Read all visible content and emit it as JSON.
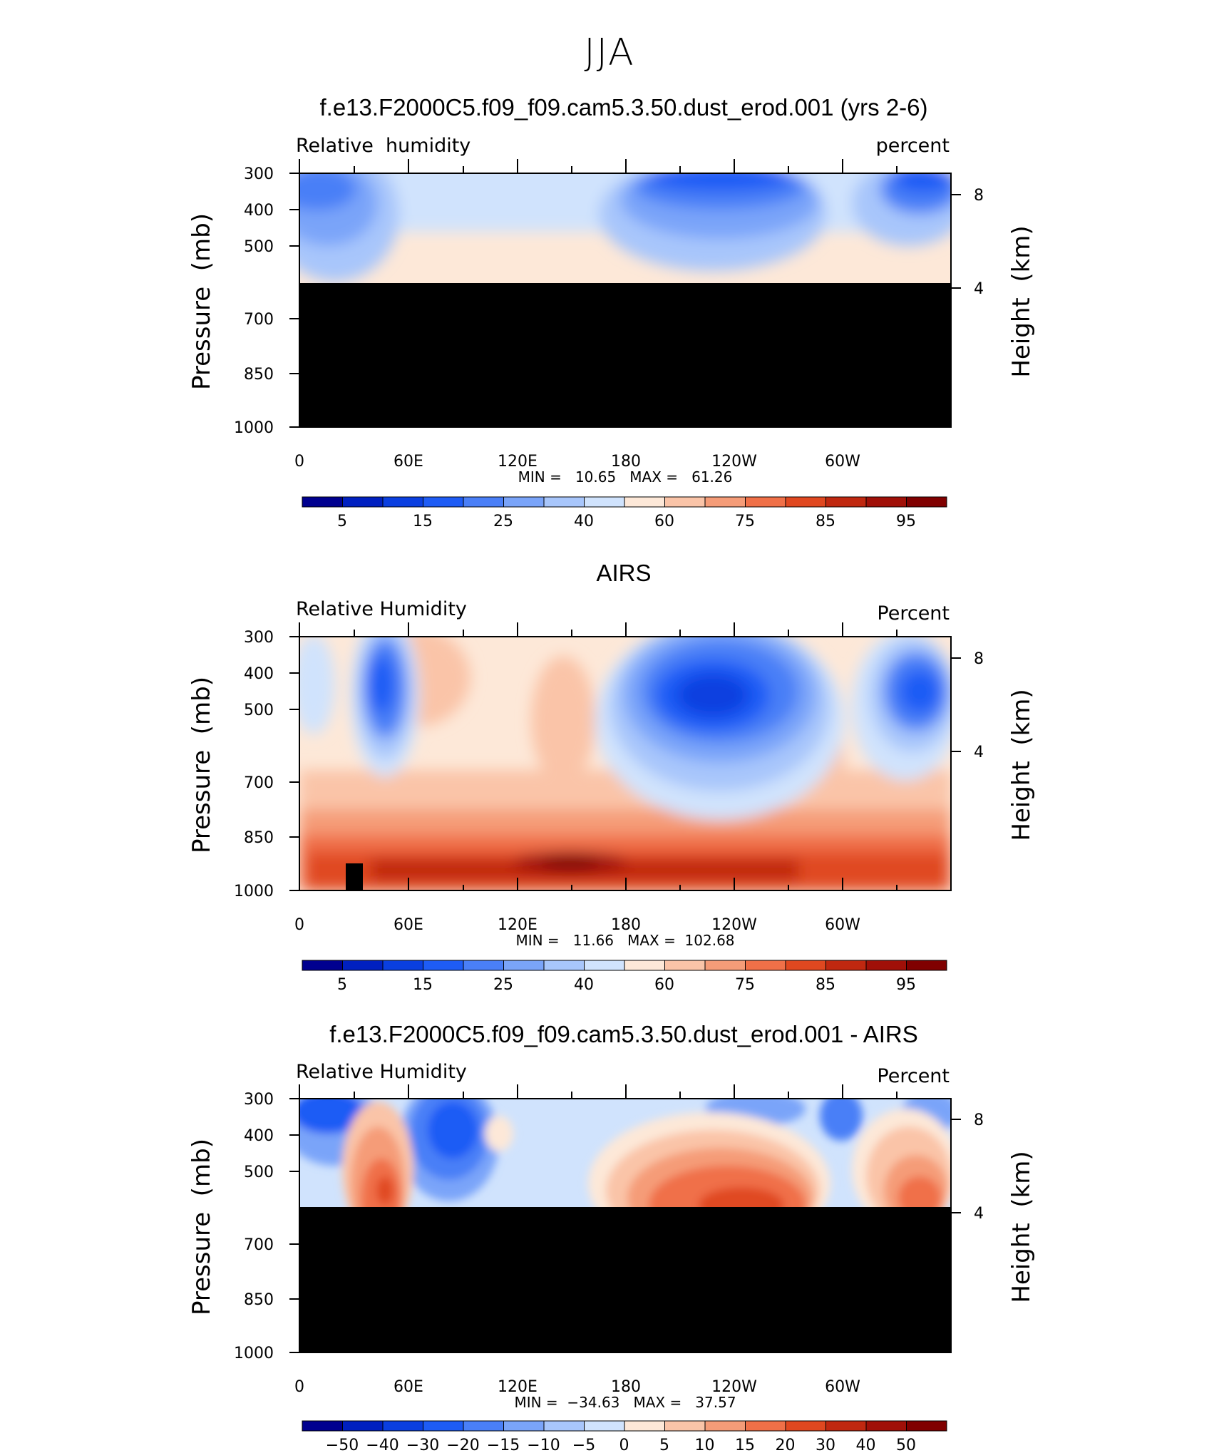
{
  "figure": {
    "title": "JJA"
  },
  "colors": {
    "axis": "#000000",
    "mask": "#000000"
  },
  "chart_data": [
    {
      "type": "heatmap",
      "title": "f.e13.F2000C5.f09_f09.cam5.3.50.dust_erod.001 (yrs 2-6)",
      "subtitle_left": "Relative  humidity",
      "subtitle_right": "percent",
      "ylabel": "Pressure  (mb)",
      "y2label": "Height  (km)",
      "x_ticks": [
        "0",
        "60E",
        "120E",
        "180",
        "120W",
        "60W"
      ],
      "y_ticks": [
        "300",
        "400",
        "500",
        "700",
        "850",
        "1000"
      ],
      "y2_ticks": [
        "8",
        "4"
      ],
      "stats": "MIN =   10.65   MAX =   61.26",
      "min": 10.65,
      "max": 61.26,
      "colorbar_labels": [
        "5",
        "15",
        "25",
        "40",
        "60",
        "75",
        "85",
        "95"
      ],
      "colorbar_colors": [
        "#00008f",
        "#0020c0",
        "#0a3fe0",
        "#1e5cf5",
        "#4a7ff7",
        "#7aa4f9",
        "#a8c6fb",
        "#d0e3fd",
        "#fde8d8",
        "#fac4a8",
        "#f59c78",
        "#f07048",
        "#e04820",
        "#c02810",
        "#a01008",
        "#800000"
      ]
    },
    {
      "type": "heatmap",
      "title": "AIRS",
      "subtitle_left": "Relative Humidity",
      "subtitle_right": "Percent",
      "ylabel": "Pressure  (mb)",
      "y2label": "Height  (km)",
      "x_ticks": [
        "0",
        "60E",
        "120E",
        "180",
        "120W",
        "60W"
      ],
      "y_ticks": [
        "300",
        "400",
        "500",
        "700",
        "850",
        "1000"
      ],
      "y2_ticks": [
        "8",
        "4"
      ],
      "stats": "MIN =   11.66   MAX =  102.68",
      "min": 11.66,
      "max": 102.68,
      "colorbar_labels": [
        "5",
        "15",
        "25",
        "40",
        "60",
        "75",
        "85",
        "95"
      ],
      "colorbar_colors": [
        "#00008f",
        "#0020c0",
        "#0a3fe0",
        "#1e5cf5",
        "#4a7ff7",
        "#7aa4f9",
        "#a8c6fb",
        "#d0e3fd",
        "#fde8d8",
        "#fac4a8",
        "#f59c78",
        "#f07048",
        "#e04820",
        "#c02810",
        "#a01008",
        "#800000"
      ]
    },
    {
      "type": "heatmap",
      "title": "f.e13.F2000C5.f09_f09.cam5.3.50.dust_erod.001 - AIRS",
      "subtitle_left": "Relative Humidity",
      "subtitle_right": "Percent",
      "ylabel": "Pressure  (mb)",
      "y2label": "Height  (km)",
      "x_ticks": [
        "0",
        "60E",
        "120E",
        "180",
        "120W",
        "60W"
      ],
      "y_ticks": [
        "300",
        "400",
        "500",
        "700",
        "850",
        "1000"
      ],
      "y2_ticks": [
        "8",
        "4"
      ],
      "stats": "MIN =  −34.63   MAX =   37.57",
      "min": -34.63,
      "max": 37.57,
      "colorbar_labels": [
        "−50",
        "−40",
        "−30",
        "−20",
        "−15",
        "−10",
        "−5",
        "0",
        "5",
        "10",
        "15",
        "20",
        "30",
        "40",
        "50"
      ],
      "colorbar_colors": [
        "#00008f",
        "#0020c0",
        "#0a3fe0",
        "#1e5cf5",
        "#4a7ff7",
        "#7aa4f9",
        "#a8c6fb",
        "#d0e3fd",
        "#fde8d8",
        "#fac4a8",
        "#f59c78",
        "#f07048",
        "#e04820",
        "#c02810",
        "#a01008",
        "#800000"
      ]
    }
  ]
}
